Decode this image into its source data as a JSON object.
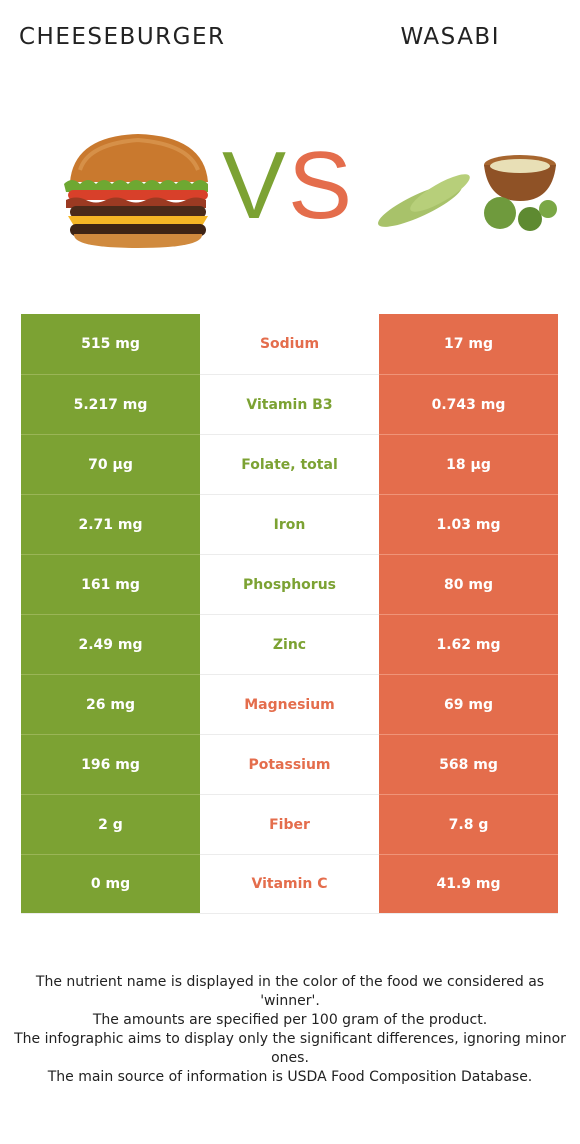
{
  "header": {
    "left_food": "CHEESEBURGER",
    "right_food": "WASABI"
  },
  "vs": {
    "v": "V",
    "s": "S"
  },
  "images": {
    "left": "cheeseburger-image",
    "right": "wasabi-image"
  },
  "colors": {
    "left_winner": "#7ca233",
    "right_winner": "#e46d4c"
  },
  "rows": [
    {
      "left": "515 mg",
      "nutrient": "Sodium",
      "right": "17 mg",
      "winner": "right"
    },
    {
      "left": "5.217 mg",
      "nutrient": "Vitamin B3",
      "right": "0.743 mg",
      "winner": "left"
    },
    {
      "left": "70 µg",
      "nutrient": "Folate, total",
      "right": "18 µg",
      "winner": "left"
    },
    {
      "left": "2.71 mg",
      "nutrient": "Iron",
      "right": "1.03 mg",
      "winner": "left"
    },
    {
      "left": "161 mg",
      "nutrient": "Phosphorus",
      "right": "80 mg",
      "winner": "left"
    },
    {
      "left": "2.49 mg",
      "nutrient": "Zinc",
      "right": "1.62 mg",
      "winner": "left"
    },
    {
      "left": "26 mg",
      "nutrient": "Magnesium",
      "right": "69 mg",
      "winner": "right"
    },
    {
      "left": "196 mg",
      "nutrient": "Potassium",
      "right": "568 mg",
      "winner": "right"
    },
    {
      "left": "2 g",
      "nutrient": "Fiber",
      "right": "7.8 g",
      "winner": "right"
    },
    {
      "left": "0 mg",
      "nutrient": "Vitamin C",
      "right": "41.9 mg",
      "winner": "right"
    }
  ],
  "footnote": {
    "line1": "The nutrient name is displayed in the color of the food we considered as 'winner'.",
    "line2": "The amounts are specified per 100 gram of the product.",
    "line3": "The infographic aims to display only the significant differences, ignoring minor ones.",
    "line4": "The main source of information is USDA Food Composition Database."
  }
}
